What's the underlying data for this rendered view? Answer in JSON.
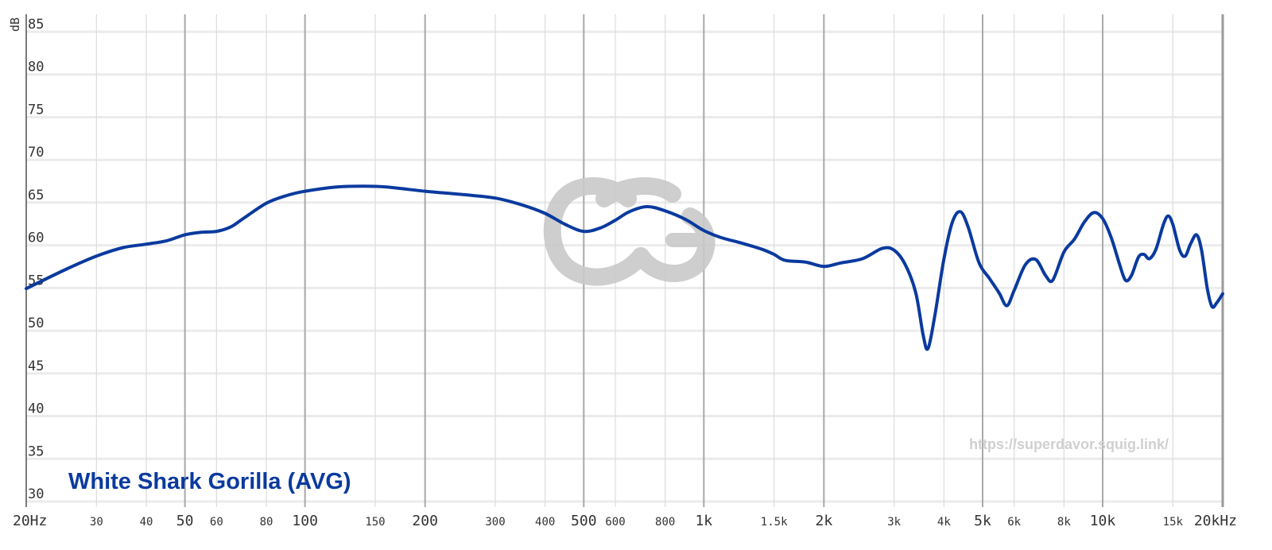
{
  "chart_data": {
    "type": "line",
    "title": "",
    "xlabel": "",
    "ylabel": "dB",
    "x_scale": "log",
    "xlim": [
      20,
      20000
    ],
    "ylim": [
      30,
      85
    ],
    "grid": true,
    "legend_placement": "bottom-left",
    "y_ticks": [
      "85",
      "80",
      "75",
      "70",
      "65",
      "60",
      "55",
      "50",
      "45",
      "40",
      "35",
      "30"
    ],
    "x_ticks": [
      {
        "value": 20,
        "label": "20Hz",
        "major": true
      },
      {
        "value": 30,
        "label": "30",
        "major": false
      },
      {
        "value": 40,
        "label": "40",
        "major": false
      },
      {
        "value": 50,
        "label": "50",
        "major": true
      },
      {
        "value": 60,
        "label": "60",
        "major": false
      },
      {
        "value": 80,
        "label": "80",
        "major": false
      },
      {
        "value": 100,
        "label": "100",
        "major": true
      },
      {
        "value": 150,
        "label": "150",
        "major": false
      },
      {
        "value": 200,
        "label": "200",
        "major": true
      },
      {
        "value": 300,
        "label": "300",
        "major": false
      },
      {
        "value": 400,
        "label": "400",
        "major": false
      },
      {
        "value": 500,
        "label": "500",
        "major": true
      },
      {
        "value": 600,
        "label": "600",
        "major": false
      },
      {
        "value": 800,
        "label": "800",
        "major": false
      },
      {
        "value": 1000,
        "label": "1k",
        "major": true
      },
      {
        "value": 1500,
        "label": "1.5k",
        "major": false
      },
      {
        "value": 2000,
        "label": "2k",
        "major": true
      },
      {
        "value": 3000,
        "label": "3k",
        "major": false
      },
      {
        "value": 4000,
        "label": "4k",
        "major": false
      },
      {
        "value": 5000,
        "label": "5k",
        "major": true
      },
      {
        "value": 6000,
        "label": "6k",
        "major": false
      },
      {
        "value": 8000,
        "label": "8k",
        "major": false
      },
      {
        "value": 10000,
        "label": "10k",
        "major": true
      },
      {
        "value": 15000,
        "label": "15k",
        "major": false
      },
      {
        "value": 20000,
        "label": "20kHz",
        "major": true
      }
    ],
    "series": [
      {
        "name": "White Shark Gorilla (AVG)",
        "color": "#0a3a9e",
        "points": [
          [
            20,
            54.0
          ],
          [
            25,
            56.2
          ],
          [
            30,
            57.8
          ],
          [
            35,
            58.8
          ],
          [
            40,
            59.2
          ],
          [
            45,
            59.6
          ],
          [
            50,
            60.3
          ],
          [
            55,
            60.6
          ],
          [
            60,
            60.7
          ],
          [
            65,
            61.2
          ],
          [
            70,
            62.2
          ],
          [
            80,
            64.0
          ],
          [
            90,
            64.9
          ],
          [
            100,
            65.4
          ],
          [
            120,
            65.9
          ],
          [
            140,
            66.0
          ],
          [
            160,
            65.9
          ],
          [
            200,
            65.4
          ],
          [
            250,
            65.0
          ],
          [
            300,
            64.6
          ],
          [
            350,
            63.8
          ],
          [
            400,
            62.8
          ],
          [
            450,
            61.5
          ],
          [
            500,
            60.7
          ],
          [
            550,
            61.1
          ],
          [
            600,
            62.0
          ],
          [
            650,
            63.0
          ],
          [
            720,
            63.6
          ],
          [
            800,
            63.1
          ],
          [
            900,
            62.1
          ],
          [
            1000,
            60.8
          ],
          [
            1100,
            60.0
          ],
          [
            1250,
            59.3
          ],
          [
            1400,
            58.6
          ],
          [
            1500,
            58.0
          ],
          [
            1600,
            57.3
          ],
          [
            1800,
            57.1
          ],
          [
            2000,
            56.6
          ],
          [
            2200,
            57.0
          ],
          [
            2500,
            57.5
          ],
          [
            2800,
            58.7
          ],
          [
            3000,
            58.5
          ],
          [
            3200,
            56.8
          ],
          [
            3400,
            53.5
          ],
          [
            3550,
            48.5
          ],
          [
            3650,
            47.0
          ],
          [
            3800,
            51.0
          ],
          [
            4000,
            57.5
          ],
          [
            4200,
            61.8
          ],
          [
            4400,
            63.0
          ],
          [
            4600,
            61.2
          ],
          [
            4900,
            57.0
          ],
          [
            5200,
            55.2
          ],
          [
            5500,
            53.5
          ],
          [
            5750,
            52.0
          ],
          [
            6000,
            53.8
          ],
          [
            6400,
            56.8
          ],
          [
            6800,
            57.4
          ],
          [
            7200,
            55.5
          ],
          [
            7500,
            55.0
          ],
          [
            8000,
            58.3
          ],
          [
            8500,
            59.8
          ],
          [
            9000,
            61.8
          ],
          [
            9500,
            62.9
          ],
          [
            10000,
            62.2
          ],
          [
            10500,
            60.0
          ],
          [
            11000,
            57.0
          ],
          [
            11400,
            55.0
          ],
          [
            11800,
            55.5
          ],
          [
            12300,
            57.7
          ],
          [
            12700,
            58.0
          ],
          [
            13100,
            57.5
          ],
          [
            13600,
            58.6
          ],
          [
            14200,
            61.5
          ],
          [
            14600,
            62.5
          ],
          [
            15000,
            61.5
          ],
          [
            15600,
            58.5
          ],
          [
            16100,
            57.8
          ],
          [
            16600,
            59.2
          ],
          [
            17200,
            60.3
          ],
          [
            17700,
            58.5
          ],
          [
            18300,
            54.0
          ],
          [
            18800,
            51.9
          ],
          [
            19300,
            52.3
          ],
          [
            20000,
            53.4
          ]
        ]
      }
    ],
    "watermark_url": "https://superdavor.squig.link/"
  }
}
